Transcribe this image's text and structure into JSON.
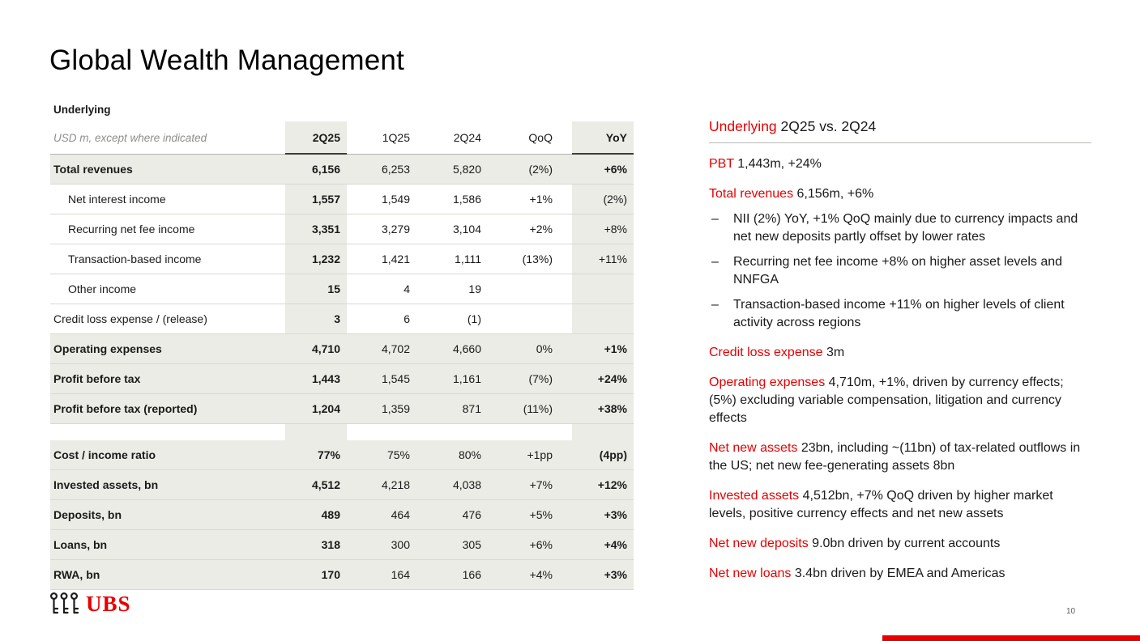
{
  "slide": {
    "title": "Global Wealth Management"
  },
  "table": {
    "section_label": "Underlying",
    "unit_note": "USD m, except where indicated",
    "columns": [
      "2Q25",
      "1Q25",
      "2Q24",
      "QoQ",
      "YoY"
    ],
    "rows": [
      {
        "label": "Total revenues",
        "bold": true,
        "indent": false,
        "values": [
          "6,156",
          "6,253",
          "5,820",
          "(2%)",
          "+6%"
        ]
      },
      {
        "label": "Net interest income",
        "bold": false,
        "indent": true,
        "values": [
          "1,557",
          "1,549",
          "1,586",
          "+1%",
          "(2%)"
        ]
      },
      {
        "label": "Recurring net fee income",
        "bold": false,
        "indent": true,
        "values": [
          "3,351",
          "3,279",
          "3,104",
          "+2%",
          "+8%"
        ]
      },
      {
        "label": "Transaction-based income",
        "bold": false,
        "indent": true,
        "values": [
          "1,232",
          "1,421",
          "1,111",
          "(13%)",
          "+11%"
        ]
      },
      {
        "label": "Other income",
        "bold": false,
        "indent": true,
        "values": [
          "15",
          "4",
          "19",
          "",
          ""
        ]
      },
      {
        "label": "Credit loss expense / (release)",
        "bold": false,
        "indent": false,
        "values": [
          "3",
          "6",
          "(1)",
          "",
          ""
        ]
      },
      {
        "label": "Operating expenses",
        "bold": true,
        "indent": false,
        "values": [
          "4,710",
          "4,702",
          "4,660",
          "0%",
          "+1%"
        ]
      },
      {
        "label": "Profit before tax",
        "bold": true,
        "indent": false,
        "values": [
          "1,443",
          "1,545",
          "1,161",
          "(7%)",
          "+24%"
        ]
      },
      {
        "label": "Profit before tax (reported)",
        "bold": true,
        "indent": false,
        "values": [
          "1,204",
          "1,359",
          "871",
          "(11%)",
          "+38%"
        ]
      },
      {
        "label": "",
        "spacer": true,
        "values": [
          "",
          "",
          "",
          "",
          ""
        ]
      },
      {
        "label": "Cost / income ratio",
        "bold": true,
        "indent": false,
        "values": [
          "77%",
          "75%",
          "80%",
          "+1pp",
          "(4pp)"
        ]
      },
      {
        "label": "Invested assets, bn",
        "bold": true,
        "indent": false,
        "values": [
          "4,512",
          "4,218",
          "4,038",
          "+7%",
          "+12%"
        ]
      },
      {
        "label": "Deposits, bn",
        "bold": true,
        "indent": false,
        "values": [
          "489",
          "464",
          "476",
          "+5%",
          "+3%"
        ]
      },
      {
        "label": "Loans, bn",
        "bold": true,
        "indent": false,
        "values": [
          "318",
          "300",
          "305",
          "+6%",
          "+4%"
        ]
      },
      {
        "label": "RWA, bn",
        "bold": true,
        "indent": false,
        "values": [
          "170",
          "164",
          "166",
          "+4%",
          "+3%"
        ]
      }
    ]
  },
  "commentary": {
    "heading": {
      "lead": "Underlying",
      "rest": " 2Q25 vs. 2Q24"
    },
    "items": [
      {
        "lead": "PBT",
        "text": " 1,443m, +24%",
        "bullets": []
      },
      {
        "lead": "Total revenues",
        "text": " 6,156m, +6%",
        "bullets": [
          "NII (2%) YoY, +1% QoQ mainly due to currency impacts and net new deposits partly offset by lower rates",
          "Recurring net fee income +8% on higher asset levels and NNFGA",
          "Transaction-based income +11% on higher levels of client activity across regions"
        ]
      },
      {
        "lead": "Credit loss expense",
        "text": " 3m",
        "bullets": []
      },
      {
        "lead": "Operating expenses",
        "text": " 4,710m, +1%, driven by currency effects; (5%) excluding variable compensation, litigation and currency effects",
        "bullets": []
      },
      {
        "lead": "Net new assets",
        "text": " 23bn, including ~(11bn) of tax-related outflows in the US; net new fee-generating assets 8bn",
        "bullets": []
      },
      {
        "lead": "Invested assets",
        "text": " 4,512bn, +7% QoQ driven by higher market levels, positive currency effects and net new assets",
        "bullets": []
      },
      {
        "lead": "Net new deposits",
        "text": " 9.0bn driven by current accounts",
        "bullets": []
      },
      {
        "lead": "Net new loans",
        "text": " 3.4bn driven by EMEA and Americas",
        "bullets": []
      }
    ]
  },
  "footer": {
    "logo_text": "UBS",
    "page_number": "10"
  },
  "colors": {
    "accent_red": "#e60000",
    "column_shade": "#ECECE6",
    "row_border": "#d9d9d2"
  }
}
